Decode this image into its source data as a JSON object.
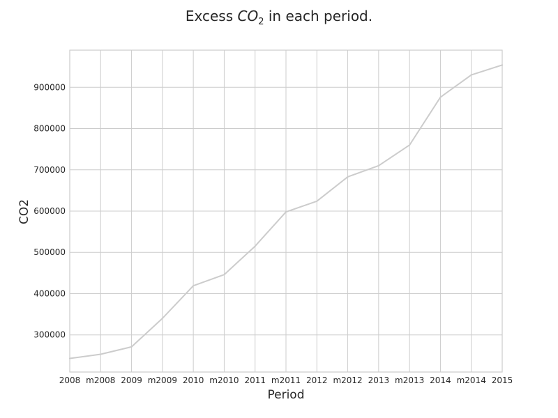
{
  "chart_data": {
    "type": "line",
    "title_parts": {
      "before": "Excess ",
      "math": "CO",
      "subscript": "2",
      "after": " in each period."
    },
    "xlabel": "Period",
    "ylabel": "CO2",
    "categories": [
      "2008",
      "m2008",
      "2009",
      "m2009",
      "2010",
      "m2010",
      "2011",
      "m2011",
      "2012",
      "m2012",
      "2013",
      "m2013",
      "2014",
      "m2014",
      "2015"
    ],
    "series": [
      {
        "values": [
          243000,
          253000,
          271000,
          340000,
          419000,
          446000,
          515000,
          598000,
          624000,
          683000,
          710000,
          760000,
          876000,
          930000,
          954000
        ],
        "color": "#cccccc"
      }
    ],
    "ylim": [
      210000,
      990000
    ],
    "yticks": [
      300000,
      400000,
      500000,
      600000,
      700000,
      800000,
      900000
    ],
    "ytick_labels": [
      "300000",
      "400000",
      "500000",
      "600000",
      "700000",
      "800000",
      "900000"
    ],
    "grid": true,
    "legend": "none"
  }
}
